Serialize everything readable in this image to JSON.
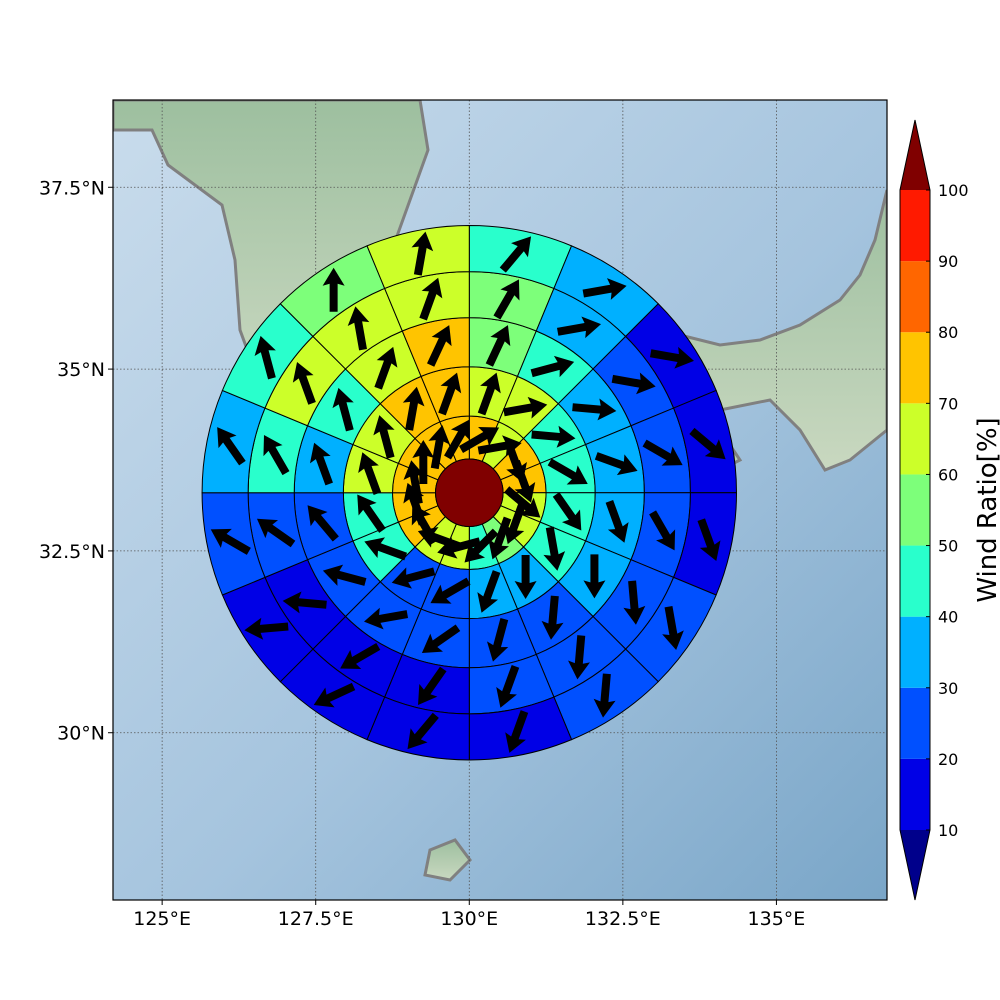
{
  "chart_data": {
    "type": "polar_heatmap_map",
    "title": "",
    "xlabel": "",
    "ylabel": "",
    "xlim": [
      124.2,
      136.8
    ],
    "ylim": [
      27.7,
      38.7
    ],
    "x_ticks": [
      125,
      127.5,
      130,
      132.5,
      135
    ],
    "x_tick_labels": [
      "125°E",
      "127.5°E",
      "130°E",
      "132.5°E",
      "135°E"
    ],
    "y_ticks": [
      30,
      32.5,
      35,
      37.5
    ],
    "y_tick_labels": [
      "30°N",
      "32.5°N",
      "35°N",
      "37.5°N"
    ],
    "grid": true,
    "center": {
      "lon": 130.0,
      "lat": 33.3
    },
    "center_value": 100,
    "ring_edges_deg": [
      0.55,
      1.25,
      2.05,
      2.85,
      3.6,
      4.35
    ],
    "sectors": 16,
    "sector_order": "clockwise from north, sector 0 spans N to NNE",
    "rings": [
      {
        "values": [
          77,
          62,
          72,
          72,
          62,
          62,
          57,
          42,
          62,
          62,
          77,
          77,
          77,
          77,
          77,
          77
        ]
      },
      {
        "values": [
          62,
          62,
          42,
          45,
          47,
          47,
          37,
          37,
          27,
          27,
          45,
          45,
          62,
          62,
          72,
          72
        ]
      },
      {
        "values": [
          55,
          40,
          32,
          30,
          32,
          32,
          27,
          22,
          22,
          22,
          22,
          22,
          37,
          42,
          62,
          72
        ]
      },
      {
        "values": [
          55,
          35,
          22,
          20,
          20,
          22,
          22,
          20,
          17,
          12,
          15,
          25,
          45,
          60,
          60,
          62
        ]
      },
      {
        "values": [
          47,
          35,
          17,
          17,
          17,
          22,
          22,
          17,
          17,
          12,
          12,
          22,
          35,
          45,
          55,
          60
        ]
      }
    ],
    "arrow_directions_deg": [
      [
        60,
        80,
        160,
        160,
        130,
        200,
        200,
        225,
        255,
        290,
        330,
        340,
        350,
        0,
        10,
        30
      ],
      [
        20,
        80,
        95,
        120,
        145,
        170,
        180,
        200,
        240,
        255,
        290,
        325,
        340,
        345,
        10,
        20
      ],
      [
        25,
        75,
        95,
        110,
        160,
        180,
        185,
        195,
        235,
        260,
        285,
        320,
        340,
        345,
        20,
        25
      ],
      [
        30,
        80,
        100,
        120,
        150,
        175,
        185,
        200,
        215,
        240,
        275,
        305,
        330,
        340,
        350,
        20
      ],
      [
        40,
        80,
        100,
        130,
        160,
        170,
        185,
        200,
        220,
        245,
        265,
        300,
        325,
        345,
        0,
        10
      ]
    ],
    "colorbar": {
      "label": "Wind Ratio[%]",
      "ticks": [
        10,
        20,
        30,
        40,
        50,
        60,
        70,
        80,
        90,
        100
      ],
      "levels": [
        10,
        20,
        30,
        40,
        50,
        60,
        70,
        80,
        90,
        100
      ],
      "colors": [
        "#0000e6",
        "#0050ff",
        "#00b0ff",
        "#29ffcc",
        "#7dff7a",
        "#ccff29",
        "#ffc400",
        "#ff6600",
        "#ff1a00"
      ],
      "under_color": "#00008b",
      "over_color": "#800000",
      "extend": "both"
    },
    "colors": {
      "ocean": "#a9c7df",
      "land": "#8fb39a",
      "coastline": "#808080",
      "grid": "#555555",
      "arrow": "#000000"
    }
  }
}
